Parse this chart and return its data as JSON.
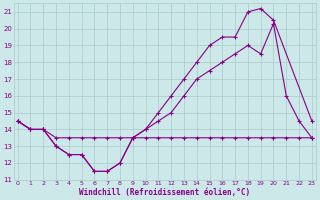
{
  "x_labels": [
    0,
    1,
    2,
    3,
    4,
    5,
    6,
    7,
    8,
    9,
    10,
    11,
    12,
    13,
    14,
    15,
    16,
    17,
    18,
    19,
    20,
    21,
    22,
    23
  ],
  "line1_x": [
    0,
    1,
    2,
    3,
    4,
    5,
    6,
    7,
    8,
    9,
    10,
    11,
    12,
    13,
    14,
    15,
    16,
    17,
    18,
    19,
    20,
    23
  ],
  "line1_y": [
    14.5,
    14.0,
    14.0,
    13.0,
    12.5,
    12.5,
    11.5,
    11.5,
    12.0,
    13.5,
    14.0,
    15.0,
    16.0,
    17.0,
    18.0,
    19.0,
    19.5,
    19.5,
    21.0,
    21.2,
    20.5,
    14.5
  ],
  "line2_x": [
    0,
    1,
    2,
    3,
    4,
    5,
    6,
    7,
    8,
    9,
    10,
    11,
    12,
    13,
    14,
    15,
    16,
    17,
    18,
    19,
    20,
    21,
    22,
    23
  ],
  "line2_y": [
    14.5,
    14.0,
    14.0,
    13.0,
    12.5,
    12.5,
    11.5,
    11.5,
    12.0,
    13.5,
    14.0,
    14.5,
    15.0,
    16.0,
    17.0,
    17.5,
    18.0,
    18.5,
    19.0,
    18.5,
    20.3,
    16.0,
    14.5,
    13.5
  ],
  "line3_x": [
    0,
    1,
    2,
    3,
    4,
    5,
    6,
    7,
    8,
    9,
    10,
    11,
    12,
    13,
    14,
    15,
    16,
    17,
    18,
    19,
    20,
    21,
    22,
    23
  ],
  "line3_y": [
    14.5,
    14.0,
    14.0,
    13.5,
    13.5,
    13.5,
    13.5,
    13.5,
    13.5,
    13.5,
    13.5,
    13.5,
    13.5,
    13.5,
    13.5,
    13.5,
    13.5,
    13.5,
    13.5,
    13.5,
    13.5,
    13.5,
    13.5,
    13.5
  ],
  "bg_color": "#cce8e8",
  "grid_color": "#aacccc",
  "line_color": "#880088",
  "ylim": [
    11,
    21.5
  ],
  "xlim": [
    -0.3,
    23.3
  ],
  "yticks": [
    11,
    12,
    13,
    14,
    15,
    16,
    17,
    18,
    19,
    20,
    21
  ],
  "xticks": [
    0,
    1,
    2,
    3,
    4,
    5,
    6,
    7,
    8,
    9,
    10,
    11,
    12,
    13,
    14,
    15,
    16,
    17,
    18,
    19,
    20,
    21,
    22,
    23
  ],
  "xlabel": "Windchill (Refroidissement éolien,°C)"
}
